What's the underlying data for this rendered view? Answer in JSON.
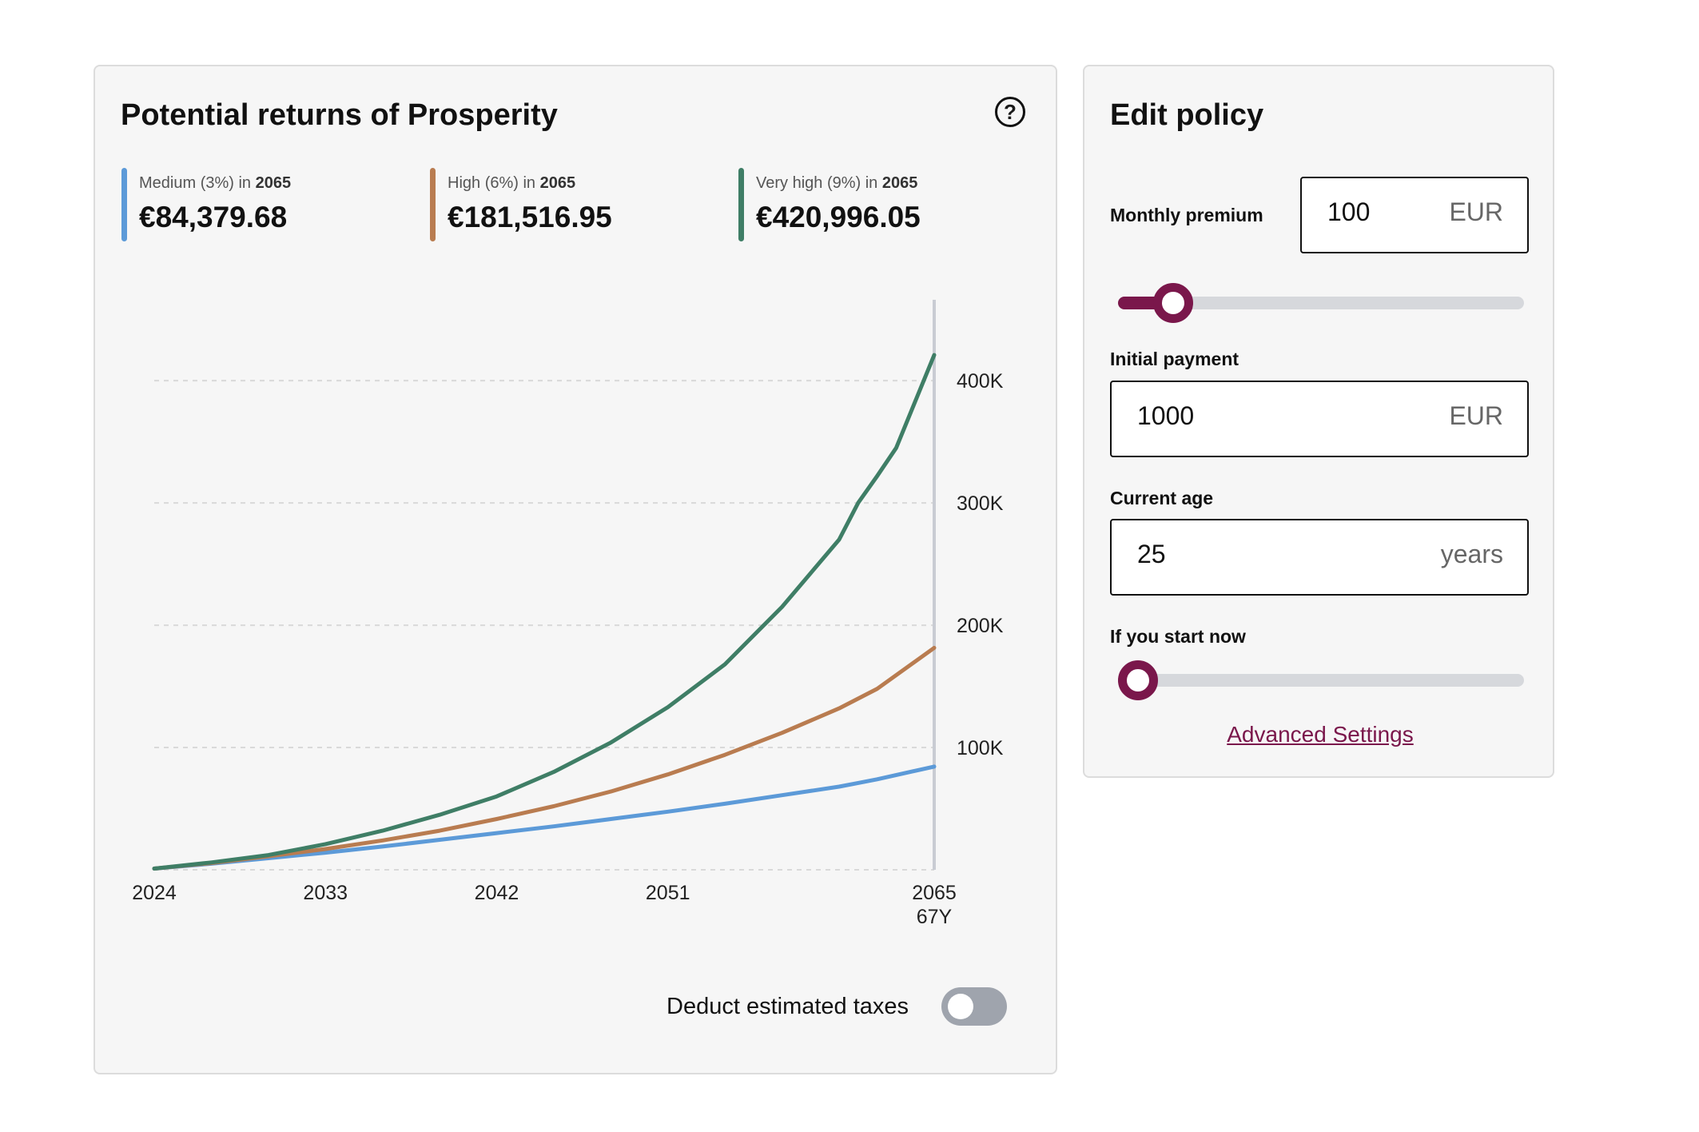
{
  "returns": {
    "title": "Potential returns of Prosperity",
    "help_icon": "question-circle-icon",
    "legend": [
      {
        "name": "Medium (3%)",
        "in": "in",
        "year": "2065",
        "value": "€84,379.68",
        "color": "#5c9ad8"
      },
      {
        "name": "High (6%)",
        "in": "in",
        "year": "2065",
        "value": "€181,516.95",
        "color": "#b97c50"
      },
      {
        "name": "Very high (9%)",
        "in": "in",
        "year": "2065",
        "value": "€420,996.05",
        "color": "#3f7e66"
      }
    ],
    "tax_toggle": {
      "label": "Deduct estimated taxes",
      "on": false
    }
  },
  "chart_data": {
    "type": "line",
    "x_ticks": [
      "2024",
      "2033",
      "2042",
      "2051",
      "2065"
    ],
    "x_end_sublabel": "67Y",
    "y_ticks": [
      "100K",
      "200K",
      "300K",
      "400K"
    ],
    "y_tick_values": [
      100000,
      200000,
      300000,
      400000
    ],
    "xlim": [
      2024,
      2065
    ],
    "ylim": [
      0,
      440000
    ],
    "grid": true,
    "series": [
      {
        "name": "Medium (3%)",
        "color": "#5c9ad8",
        "x": [
          2024,
          2027,
          2030,
          2033,
          2036,
          2039,
          2042,
          2045,
          2048,
          2051,
          2054,
          2057,
          2060,
          2061,
          2062,
          2065
        ],
        "y": [
          1000,
          5000,
          9500,
          14000,
          19000,
          24500,
          30000,
          35500,
          41500,
          47500,
          54000,
          61000,
          68000,
          71000,
          74000,
          84380
        ]
      },
      {
        "name": "High (6%)",
        "color": "#b97c50",
        "x": [
          2024,
          2027,
          2030,
          2033,
          2036,
          2039,
          2042,
          2045,
          2048,
          2051,
          2054,
          2057,
          2060,
          2061,
          2062,
          2065
        ],
        "y": [
          1000,
          5500,
          11000,
          17000,
          24000,
          32000,
          41500,
          52000,
          64000,
          78000,
          94000,
          112000,
          132000,
          140000,
          148000,
          181517
        ]
      },
      {
        "name": "Very high (9%)",
        "color": "#3f7e66",
        "x": [
          2024,
          2027,
          2030,
          2033,
          2036,
          2039,
          2042,
          2045,
          2048,
          2051,
          2054,
          2057,
          2060,
          2061,
          2062,
          2063,
          2065
        ],
        "y": [
          1000,
          6000,
          12000,
          21000,
          32000,
          45000,
          60000,
          80000,
          104000,
          133000,
          168000,
          215000,
          270000,
          300000,
          322000,
          345000,
          420996
        ]
      }
    ]
  },
  "policy": {
    "title": "Edit policy",
    "monthly_premium": {
      "label": "Monthly premium",
      "value": "100",
      "unit": "EUR",
      "slider_fraction": 0.12
    },
    "initial_payment": {
      "label": "Initial payment",
      "value": "1000",
      "unit": "EUR"
    },
    "current_age": {
      "label": "Current age",
      "value": "25",
      "unit": "years"
    },
    "start_now": {
      "label": "If you start now",
      "slider_fraction": 0.0
    },
    "advanced_link": "Advanced Settings"
  }
}
